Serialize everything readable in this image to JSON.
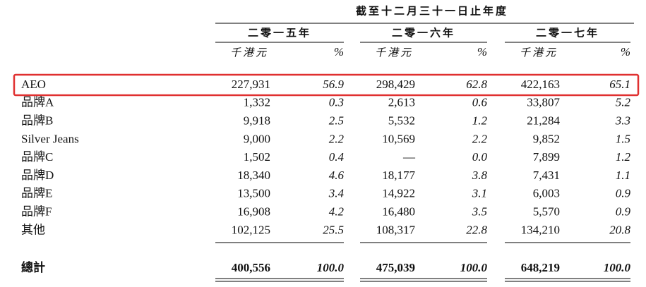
{
  "table": {
    "title": "截至十二月三十一日止年度",
    "columns": [
      {
        "year": "二零一五年",
        "unit": "千港元",
        "pct": "%"
      },
      {
        "year": "二零一六年",
        "unit": "千港元",
        "pct": "%"
      },
      {
        "year": "二零一七年",
        "unit": "千港元",
        "pct": "%"
      }
    ],
    "rows": [
      {
        "label": "AEO",
        "cells": [
          "227,931",
          "56.9",
          "298,429",
          "62.8",
          "422,163",
          "65.1"
        ]
      },
      {
        "label": "品牌A",
        "cells": [
          "1,332",
          "0.3",
          "2,613",
          "0.6",
          "33,807",
          "5.2"
        ]
      },
      {
        "label": "品牌B",
        "cells": [
          "9,918",
          "2.5",
          "5,532",
          "1.2",
          "21,284",
          "3.3"
        ]
      },
      {
        "label": "Silver Jeans",
        "cells": [
          "9,000",
          "2.2",
          "10,569",
          "2.2",
          "9,852",
          "1.5"
        ]
      },
      {
        "label": "品牌C",
        "cells": [
          "1,502",
          "0.4",
          "—",
          "0.0",
          "7,899",
          "1.2"
        ]
      },
      {
        "label": "品牌D",
        "cells": [
          "18,340",
          "4.6",
          "18,177",
          "3.8",
          "7,431",
          "1.1"
        ]
      },
      {
        "label": "品牌E",
        "cells": [
          "13,500",
          "3.4",
          "14,922",
          "3.1",
          "6,003",
          "0.9"
        ]
      },
      {
        "label": "品牌F",
        "cells": [
          "16,908",
          "4.2",
          "16,480",
          "3.5",
          "5,570",
          "0.9"
        ]
      },
      {
        "label": "其他",
        "cells": [
          "102,125",
          "25.5",
          "108,317",
          "22.8",
          "134,210",
          "20.8"
        ]
      }
    ],
    "total": {
      "label": "總計",
      "cells": [
        "400,556",
        "100.0",
        "475,039",
        "100.0",
        "648,219",
        "100.0"
      ]
    }
  }
}
